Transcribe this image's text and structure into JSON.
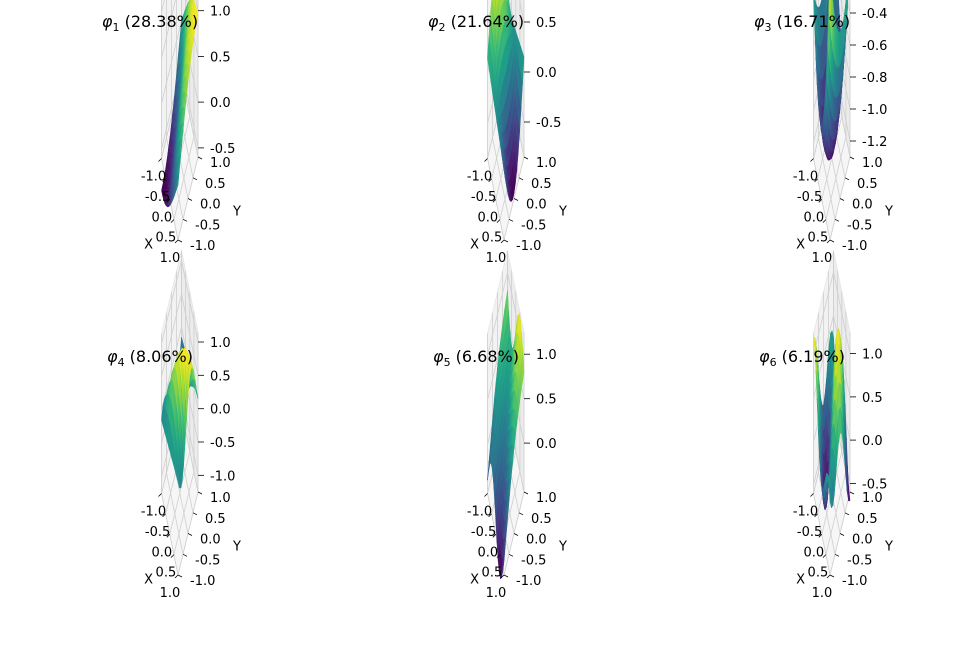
{
  "chart_data": [
    {
      "type": "surface",
      "title": "φ1 (28.38%)",
      "title_parts": {
        "symbol": "φ",
        "index": "1",
        "rest": " (28.38%)"
      },
      "xlabel": "X",
      "ylabel": "Y",
      "xlim": [
        -1.0,
        1.0
      ],
      "ylim": [
        -1.0,
        1.0
      ],
      "zlim": [
        -0.6,
        1.15
      ],
      "x_ticks": [
        "-1.0",
        "-0.5",
        "0.0",
        "0.5",
        "1.0"
      ],
      "y_ticks": [
        "-1.0",
        "-0.5",
        "0.0",
        "0.5",
        "1.0"
      ],
      "z_ticks": [
        {
          "v": 1.0,
          "label": "1.0"
        },
        {
          "v": 0.5,
          "label": "0.5"
        },
        {
          "v": 0.0,
          "label": "0.0"
        },
        {
          "v": -0.5,
          "label": "-0.5"
        }
      ],
      "colormap": "viridis",
      "grid": true
    },
    {
      "type": "surface",
      "title": "φ2 (21.64%)",
      "title_parts": {
        "symbol": "φ",
        "index": "2",
        "rest": " (21.64%)"
      },
      "xlabel": "X",
      "ylabel": "Y",
      "xlim": [
        -1.0,
        1.0
      ],
      "ylim": [
        -1.0,
        1.0
      ],
      "zlim": [
        -0.85,
        0.75
      ],
      "x_ticks": [
        "-1.0",
        "-0.5",
        "0.0",
        "0.5",
        "1.0"
      ],
      "y_ticks": [
        "-1.0",
        "-0.5",
        "0.0",
        "0.5",
        "1.0"
      ],
      "z_ticks": [
        {
          "v": 0.5,
          "label": "0.5"
        },
        {
          "v": 0.0,
          "label": "0.0"
        },
        {
          "v": -0.5,
          "label": "-0.5"
        }
      ],
      "colormap": "viridis",
      "grid": true
    },
    {
      "type": "surface",
      "title": "φ3 (16.71%)",
      "title_parts": {
        "symbol": "φ",
        "index": "3",
        "rest": " (16.71%)"
      },
      "xlabel": "X",
      "ylabel": "Y",
      "xlim": [
        -1.0,
        1.0
      ],
      "ylim": [
        -1.0,
        1.0
      ],
      "zlim": [
        -1.3,
        -0.3
      ],
      "x_ticks": [
        "-1.0",
        "-0.5",
        "0.0",
        "0.5",
        "1.0"
      ],
      "y_ticks": [
        "-1.0",
        "-0.5",
        "0.0",
        "0.5",
        "1.0"
      ],
      "z_ticks": [
        {
          "v": -0.4,
          "label": "-0.4"
        },
        {
          "v": -0.6,
          "label": "-0.6"
        },
        {
          "v": -0.8,
          "label": "-0.8"
        },
        {
          "v": -1.0,
          "label": "-1.0"
        },
        {
          "v": -1.2,
          "label": "-1.2"
        }
      ],
      "colormap": "viridis",
      "grid": true
    },
    {
      "type": "surface",
      "title": "φ4 (8.06%)",
      "title_parts": {
        "symbol": "φ",
        "index": "4",
        "rest": " (8.06%)"
      },
      "xlabel": "X",
      "ylabel": "Y",
      "xlim": [
        -1.0,
        1.0
      ],
      "ylim": [
        -1.0,
        1.0
      ],
      "zlim": [
        -1.25,
        1.15
      ],
      "x_ticks": [
        "-1.0",
        "-0.5",
        "0.0",
        "0.5",
        "1.0"
      ],
      "y_ticks": [
        "-1.0",
        "-0.5",
        "0.0",
        "0.5",
        "1.0"
      ],
      "z_ticks": [
        {
          "v": 1.0,
          "label": "1.0"
        },
        {
          "v": 0.5,
          "label": "0.5"
        },
        {
          "v": 0.0,
          "label": "0.0"
        },
        {
          "v": -0.5,
          "label": "-0.5"
        },
        {
          "v": -1.0,
          "label": "-1.0"
        }
      ],
      "colormap": "viridis",
      "grid": true
    },
    {
      "type": "surface",
      "title": "φ5 (6.68%)",
      "title_parts": {
        "symbol": "φ",
        "index": "5",
        "rest": " (6.68%)"
      },
      "xlabel": "X",
      "ylabel": "Y",
      "xlim": [
        -1.0,
        1.0
      ],
      "ylim": [
        -1.0,
        1.0
      ],
      "zlim": [
        -0.55,
        1.25
      ],
      "x_ticks": [
        "-1.0",
        "-0.5",
        "0.0",
        "0.5",
        "1.0"
      ],
      "y_ticks": [
        "-1.0",
        "-0.5",
        "0.0",
        "0.5",
        "1.0"
      ],
      "z_ticks": [
        {
          "v": 1.0,
          "label": "1.0"
        },
        {
          "v": 0.5,
          "label": "0.5"
        },
        {
          "v": 0.0,
          "label": "0.0"
        }
      ],
      "colormap": "viridis",
      "grid": true
    },
    {
      "type": "surface",
      "title": "φ6 (6.19%)",
      "title_parts": {
        "symbol": "φ",
        "index": "6",
        "rest": " (6.19%)"
      },
      "xlabel": "X",
      "ylabel": "Y",
      "xlim": [
        -1.0,
        1.0
      ],
      "ylim": [
        -1.0,
        1.0
      ],
      "zlim": [
        -0.6,
        1.25
      ],
      "x_ticks": [
        "-1.0",
        "-0.5",
        "0.0",
        "0.5",
        "1.0"
      ],
      "y_ticks": [
        "-1.0",
        "-0.5",
        "0.0",
        "0.5",
        "1.0"
      ],
      "z_ticks": [
        {
          "v": 1.0,
          "label": "1.0"
        },
        {
          "v": 0.5,
          "label": "0.5"
        },
        {
          "v": 0.0,
          "label": "0.0"
        },
        {
          "v": -0.5,
          "label": "-0.5"
        }
      ],
      "colormap": "viridis",
      "grid": true
    }
  ]
}
